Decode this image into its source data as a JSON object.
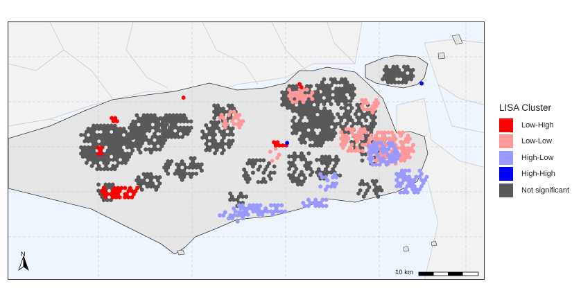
{
  "legend": {
    "title": "LISA Cluster",
    "items": [
      {
        "label": "Low-High",
        "color": "#ff0000"
      },
      {
        "label": "Low-Low",
        "color": "#ff9999"
      },
      {
        "label": "High-Low",
        "color": "#9999ff"
      },
      {
        "label": "High-High",
        "color": "#0000ff"
      },
      {
        "label": "Not significant",
        "color": "#595959"
      }
    ]
  },
  "scale_bar": {
    "label": "10 km"
  },
  "north_arrow": {
    "label": "N"
  },
  "colors": {
    "ocean": "#eef5fc",
    "land_outside": "#f2f2f2",
    "land_city": "#e6e6e6",
    "graticule": "#c8d0da"
  }
}
